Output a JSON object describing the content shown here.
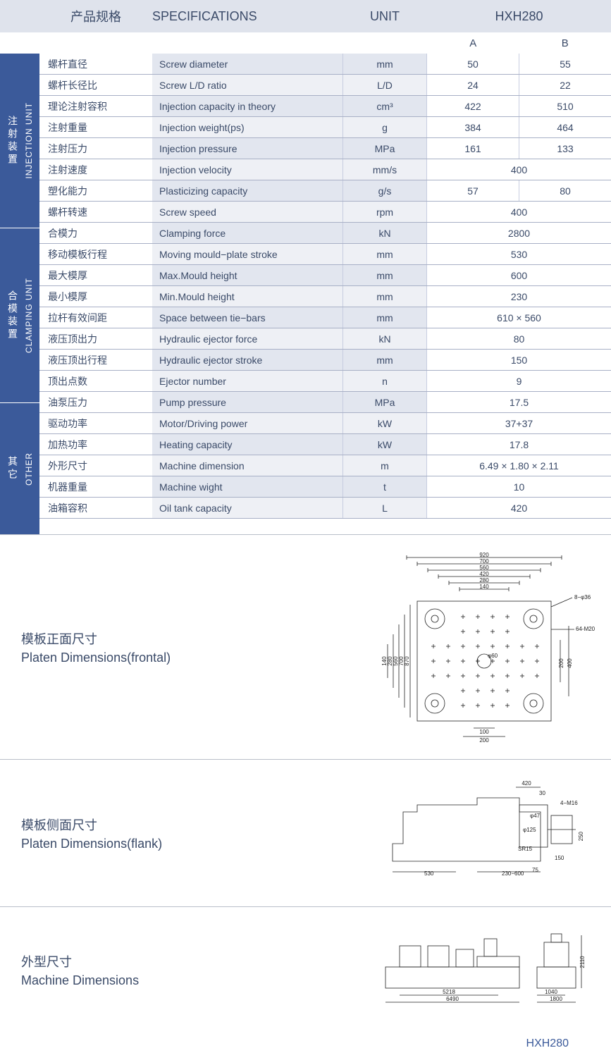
{
  "colors": {
    "header_bg": "#dfe3ec",
    "side_bg": "#3b5a9a",
    "row_tint": "#eef0f5",
    "row_tint_alt": "#e2e6ef",
    "border": "#a8b0c6",
    "text": "#3a4a68"
  },
  "header": {
    "cn": "产品规格",
    "spec": "SPECIFICATIONS",
    "unit": "UNIT",
    "model": "HXH280"
  },
  "subheader": {
    "a": "A",
    "b": "B"
  },
  "sections": [
    {
      "side_cn": "注射装置",
      "side_en": "INJECTION UNIT",
      "rows": [
        {
          "cn": "螺杆直径",
          "en": "Screw diameter",
          "unit": "mm",
          "a": "50",
          "b": "55"
        },
        {
          "cn": "螺杆长径比",
          "en": "Screw L/D ratio",
          "unit": "L/D",
          "a": "24",
          "b": "22"
        },
        {
          "cn": "理论注射容积",
          "en": "Injection capacity in theory",
          "unit": "cm³",
          "a": "422",
          "b": "510"
        },
        {
          "cn": "注射重量",
          "en": "Injection weight(ps)",
          "unit": "g",
          "a": "384",
          "b": "464"
        },
        {
          "cn": "注射压力",
          "en": "Injection pressure",
          "unit": "MPa",
          "a": "161",
          "b": "133"
        },
        {
          "cn": "注射速度",
          "en": "Injection velocity",
          "unit": "mm/s",
          "merged": "400"
        },
        {
          "cn": "塑化能力",
          "en": "Plasticizing capacity",
          "unit": "g/s",
          "a": "57",
          "b": "80"
        },
        {
          "cn": "螺杆转速",
          "en": "Screw speed",
          "unit": "rpm",
          "merged": "400"
        }
      ]
    },
    {
      "side_cn": "合模装置",
      "side_en": "CLAMPING UNIT",
      "rows": [
        {
          "cn": "合模力",
          "en": "Clamping force",
          "unit": "kN",
          "merged": "2800"
        },
        {
          "cn": "移动模板行程",
          "en": "Moving mould−plate stroke",
          "unit": "mm",
          "merged": "530"
        },
        {
          "cn": "最大模厚",
          "en": "Max.Mould height",
          "unit": "mm",
          "merged": "600"
        },
        {
          "cn": "最小模厚",
          "en": "Min.Mould height",
          "unit": "mm",
          "merged": "230"
        },
        {
          "cn": "拉杆有效间距",
          "en": "Space between tie−bars",
          "unit": "mm",
          "merged": "610 × 560"
        },
        {
          "cn": "液压顶出力",
          "en": "Hydraulic ejector force",
          "unit": "kN",
          "merged": "80"
        },
        {
          "cn": "液压顶出行程",
          "en": "Hydraulic ejector stroke",
          "unit": "mm",
          "merged": "150"
        },
        {
          "cn": "顶出点数",
          "en": "Ejector number",
          "unit": "n",
          "merged": "9"
        }
      ]
    },
    {
      "side_cn": "其它",
      "side_en": "OTHER",
      "rows": [
        {
          "cn": "油泵压力",
          "en": "Pump pressure",
          "unit": "MPa",
          "merged": "17.5"
        },
        {
          "cn": "驱动功率",
          "en": "Motor/Driving power",
          "unit": "kW",
          "merged": "37+37"
        },
        {
          "cn": "加热功率",
          "en": "Heating capacity",
          "unit": "kW",
          "merged": "17.8"
        },
        {
          "cn": "外形尺寸",
          "en": "Machine dimension",
          "unit": "m",
          "merged": "6.49 × 1.80 × 2.11"
        },
        {
          "cn": "机器重量",
          "en": "Machine wight",
          "unit": "t",
          "merged": "10"
        },
        {
          "cn": "油箱容积",
          "en": "Oil tank capacity",
          "unit": "L",
          "merged": "420"
        }
      ]
    }
  ],
  "diagrams": [
    {
      "cn": "模板正面尺寸",
      "en": "Platen Dimensions(frontal)",
      "type": "frontal",
      "dims_h": [
        "920",
        "700",
        "560",
        "420",
        "280",
        "140"
      ],
      "dims_v": [
        "870",
        "700",
        "560",
        "280",
        "140"
      ],
      "dims_bottom": [
        "100",
        "200"
      ],
      "dims_right": [
        "200",
        "400"
      ],
      "callouts": [
        "8−φ36",
        "64-M20",
        "φ60"
      ]
    },
    {
      "cn": "模板侧面尺寸",
      "en": "Platen Dimensions(flank)",
      "type": "flank",
      "dims": [
        "420",
        "30",
        "4−M16",
        "φ47",
        "φ125",
        "250",
        "SR15",
        "150",
        "75",
        "530",
        "230−600"
      ]
    },
    {
      "cn": "外型尺寸",
      "en": "Machine Dimensions",
      "type": "machine",
      "dims": [
        "5218",
        "6490",
        "2110",
        "1040",
        "1800"
      ]
    }
  ],
  "footer_model": "HXH280"
}
